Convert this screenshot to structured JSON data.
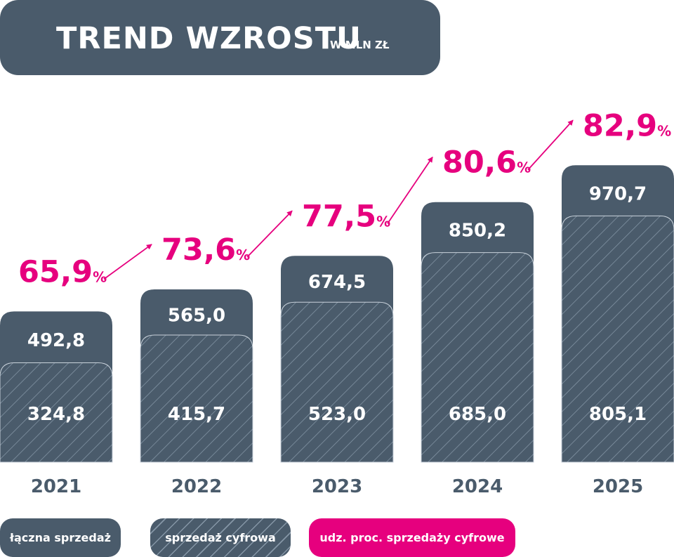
{
  "title": {
    "main": "TREND WZROSTU",
    "unit": "W MLN ZŁ"
  },
  "colors": {
    "bar": "#4a5b6b",
    "stroke": "#c9d2db",
    "hatch": "#8596a6",
    "accent": "#e6007e",
    "axis_text": "#4a5b6b"
  },
  "chart_data": {
    "type": "bar",
    "categories": [
      "2021",
      "2022",
      "2023",
      "2024",
      "2025"
    ],
    "series": [
      {
        "name": "łączna sprzedaż",
        "values": [
          492.8,
          565.0,
          674.5,
          850.2,
          970.7
        ],
        "labels": [
          "492,8",
          "565,0",
          "674,5",
          "850,2",
          "970,7"
        ]
      },
      {
        "name": "sprzedaż cyfrowa",
        "values": [
          324.8,
          415.7,
          523.0,
          685.0,
          805.1
        ],
        "labels": [
          "324,8",
          "415,7",
          "523,0",
          "685,0",
          "805,1"
        ]
      },
      {
        "name": "udz. proc. sprzedaży cyfrowe",
        "values": [
          65.9,
          73.6,
          77.5,
          80.6,
          82.9
        ],
        "labels": [
          "65,9",
          "73,6",
          "77,5",
          "80,6",
          "82,9"
        ],
        "unit": "%"
      }
    ]
  },
  "legend": {
    "total": "łączna sprzedaż",
    "digital": "sprzedaż cyfrowa",
    "share": "udz. proc. sprzedaży cyfrowe"
  }
}
